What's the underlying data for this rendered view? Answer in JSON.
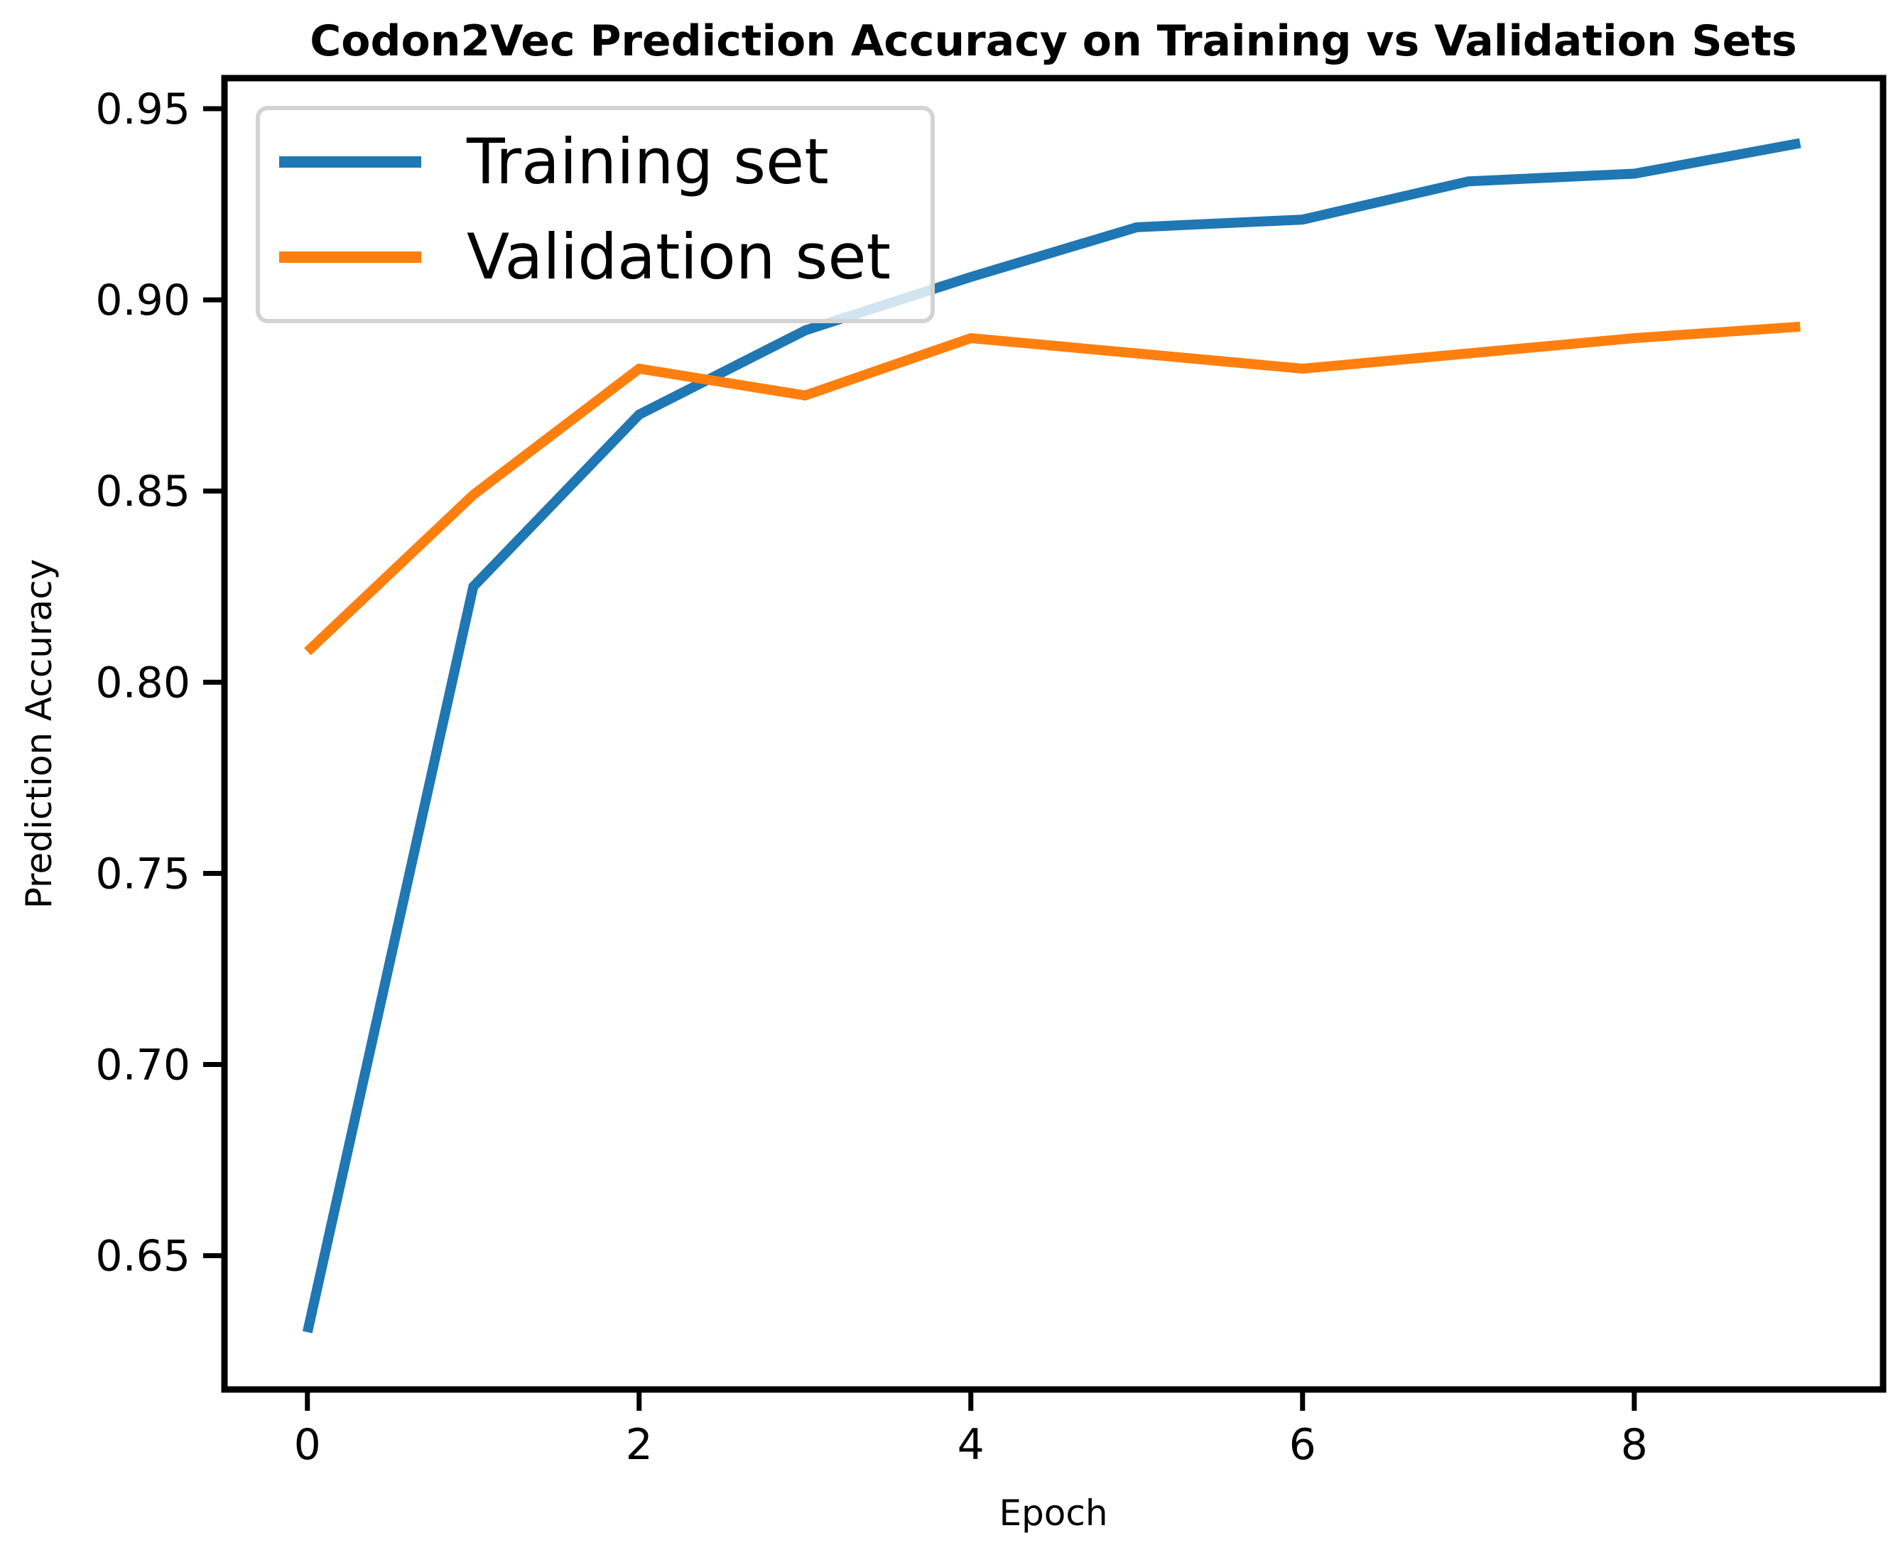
{
  "chart_data": {
    "type": "line",
    "title": "Codon2Vec Prediction Accuracy on Training vs Validation Sets",
    "xlabel": "Epoch",
    "ylabel": "Prediction Accuracy",
    "x": [
      0,
      1,
      2,
      3,
      4,
      5,
      6,
      7,
      8,
      9
    ],
    "xlim": [
      -0.5,
      9.5
    ],
    "ylim": [
      0.615,
      0.958
    ],
    "xticks": [
      0,
      2,
      4,
      6,
      8
    ],
    "xtick_labels": [
      "0",
      "2",
      "4",
      "6",
      "8"
    ],
    "yticks": [
      0.65,
      0.7,
      0.75,
      0.8,
      0.85,
      0.9,
      0.95
    ],
    "ytick_labels": [
      "0.65",
      "0.70",
      "0.75",
      "0.80",
      "0.85",
      "0.90",
      "0.95"
    ],
    "grid": false,
    "legend_position": "top-left",
    "series": [
      {
        "name": "Training set",
        "color": "#1f77b4",
        "values": [
          0.63,
          0.825,
          0.87,
          0.892,
          0.906,
          0.919,
          0.921,
          0.931,
          0.933,
          0.941
        ]
      },
      {
        "name": "Validation set",
        "color": "#ff7f0e",
        "values": [
          0.808,
          0.849,
          0.882,
          0.875,
          0.89,
          0.886,
          0.882,
          0.886,
          0.89,
          0.893
        ]
      }
    ]
  }
}
